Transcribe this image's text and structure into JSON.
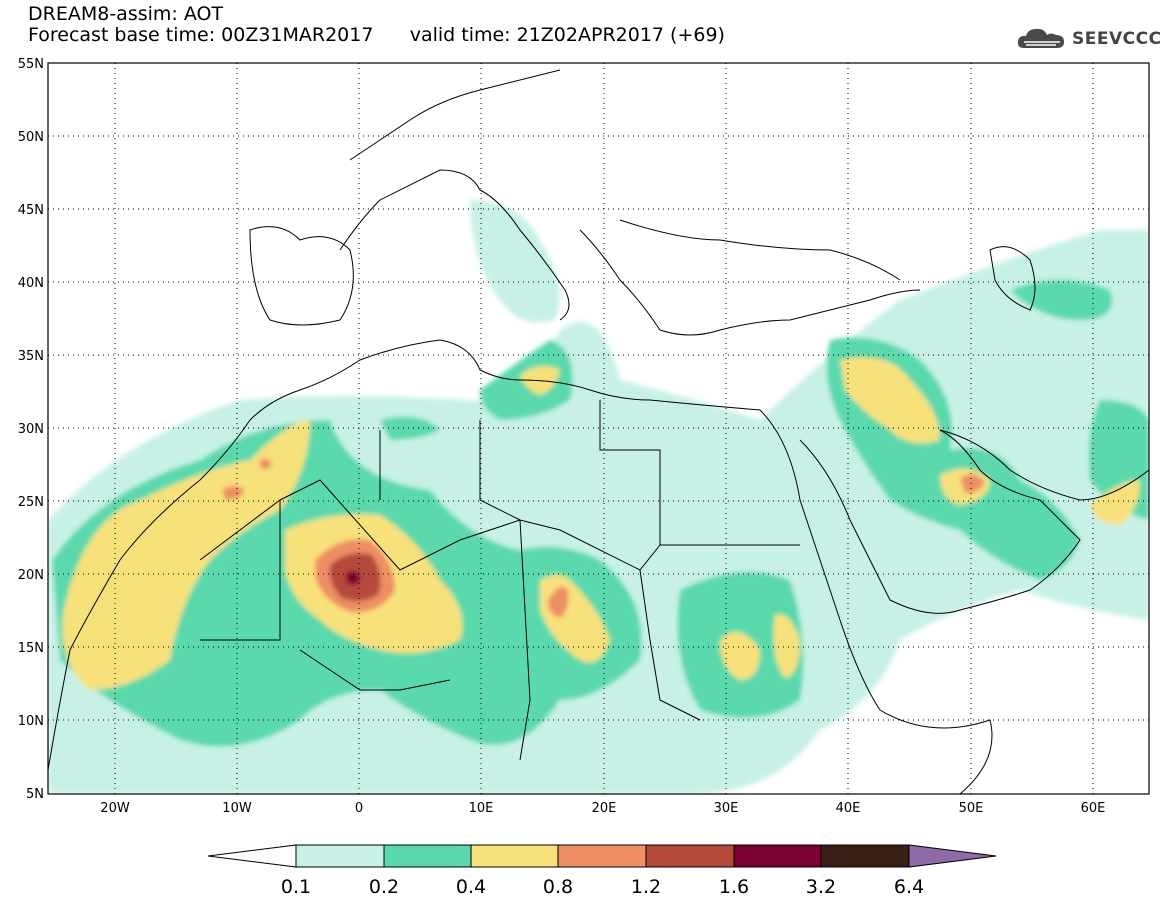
{
  "title": {
    "line1": "DREAM8-assim: AOT",
    "base_time": "Forecast base time: 00Z31MAR2017",
    "valid_time": "valid time: 21Z02APR2017 (+69)"
  },
  "logo": {
    "text": "SEEVCCC",
    "icon": "cloud-logo-icon"
  },
  "map": {
    "lon_range": [
      -25,
      65
    ],
    "lat_range": [
      5,
      55
    ],
    "lat_ticks": [
      "5N",
      "10N",
      "15N",
      "20N",
      "25N",
      "30N",
      "35N",
      "40N",
      "45N",
      "50N",
      "55N"
    ],
    "lon_ticks": [
      "20W",
      "10W",
      "0",
      "10E",
      "20E",
      "30E",
      "40E",
      "50E",
      "60E"
    ],
    "grid": "dotted"
  },
  "colorbar": {
    "labels": [
      "0.1",
      "0.2",
      "0.4",
      "0.8",
      "1.2",
      "1.6",
      "3.2",
      "6.4"
    ],
    "colors": [
      "#ffffff",
      "#c7f1e7",
      "#5ad9ad",
      "#f7e17a",
      "#ee8e63",
      "#b54a3b",
      "#7a0031",
      "#3a2014",
      "#8f6aa9"
    ]
  }
}
